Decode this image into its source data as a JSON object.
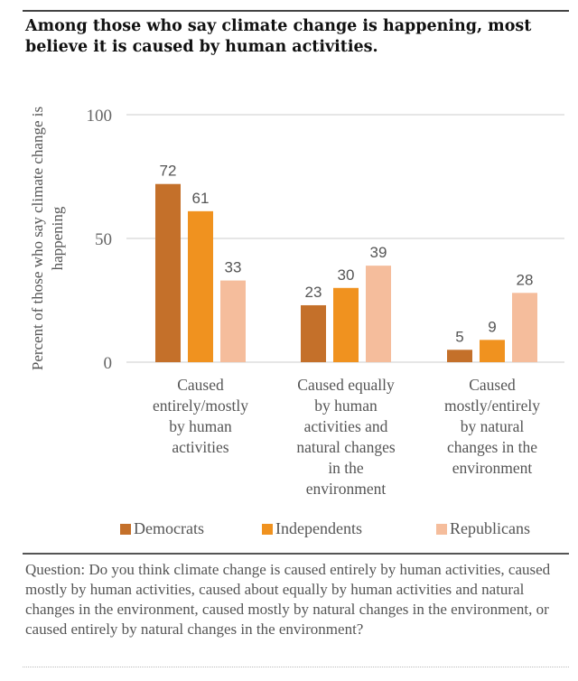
{
  "title": "Among those who say climate change is happening, most believe it is caused by human activities.",
  "chart_data": {
    "type": "bar",
    "ylabel": "Percent of those who say climate change is happening",
    "ylim": [
      0,
      100
    ],
    "yticks": [
      0,
      50,
      100
    ],
    "grid": true,
    "legend_placement": "bottom",
    "categories": [
      [
        "Caused",
        "entirely/mostly",
        "by human",
        "activities"
      ],
      [
        "Caused equally",
        "by human",
        "activities and",
        "natural changes",
        "in the",
        "environment"
      ],
      [
        "Caused",
        "mostly/entirely",
        "by natural",
        "changes in the",
        "environment"
      ]
    ],
    "series": [
      {
        "name": "Democrats",
        "color": "#c4702a",
        "values": [
          72,
          23,
          5
        ]
      },
      {
        "name": "Independents",
        "color": "#f0921f",
        "values": [
          61,
          30,
          9
        ]
      },
      {
        "name": "Republicans",
        "color": "#f5bd9c",
        "values": [
          33,
          39,
          28
        ]
      }
    ]
  },
  "question": "Question: Do you think climate change is caused entirely by human activities, caused mostly by human activities, caused about equally by human activities and natural changes in the environment, caused mostly by natural changes in the environment, or caused entirely by natural changes in the environment?"
}
